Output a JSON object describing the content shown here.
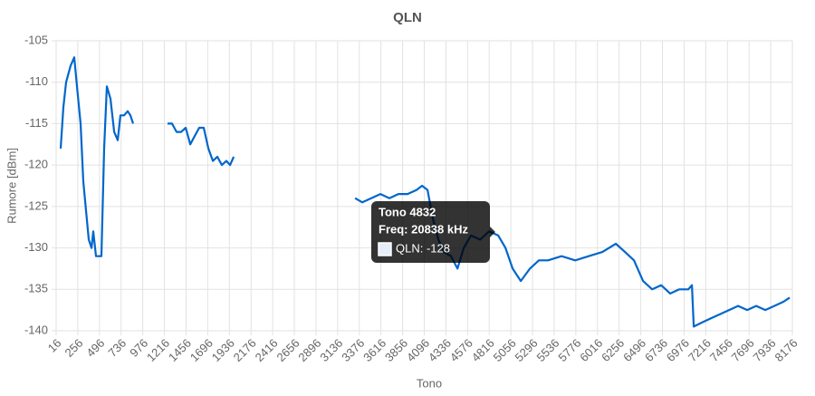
{
  "chart_data": {
    "type": "line",
    "title": "QLN",
    "x_label": "Tono",
    "y_label": "Rumore [dBm]",
    "xlim": [
      16,
      8176
    ],
    "ylim": [
      -140,
      -105
    ],
    "xticks": [
      16,
      256,
      496,
      736,
      976,
      1216,
      1456,
      1696,
      1936,
      2176,
      2416,
      2656,
      2896,
      3136,
      3376,
      3616,
      3856,
      4096,
      4336,
      4576,
      4816,
      5056,
      5296,
      5536,
      5776,
      6016,
      6256,
      6496,
      6736,
      6976,
      7216,
      7456,
      7696,
      7936,
      8176
    ],
    "yticks": [
      -140,
      -135,
      -130,
      -125,
      -120,
      -115,
      -110,
      -105
    ],
    "grid": true,
    "x": [
      66,
      96,
      126,
      177,
      217,
      247,
      287,
      317,
      347,
      377,
      408,
      428,
      458,
      518,
      548,
      578,
      618,
      659,
      699,
      729,
      769,
      809,
      839,
      869,
      null,
      1251,
      1301,
      1351,
      1401,
      1452,
      1502,
      1552,
      1602,
      1652,
      1703,
      1753,
      1803,
      1853,
      1903,
      1944,
      1984,
      null,
      3329,
      3409,
      3509,
      3610,
      3710,
      3810,
      3911,
      4011,
      4072,
      4132,
      4192,
      4253,
      4313,
      4393,
      4464,
      4534,
      4614,
      4715,
      4815,
      4916,
      4996,
      5076,
      5166,
      5267,
      5367,
      5468,
      5618,
      5769,
      5919,
      6070,
      6220,
      6321,
      6421,
      6521,
      6622,
      6722,
      6822,
      6923,
      7023,
      7063,
      7083,
      7174,
      7274,
      7374,
      7475,
      7575,
      7675,
      7776,
      7876,
      7976,
      8077,
      8147
    ],
    "series": [
      {
        "name": "QLN",
        "color": "#0066cc",
        "values": [
          -118,
          -113,
          -110,
          -108,
          -107,
          -110.5,
          -115,
          -122,
          -125.5,
          -129,
          -130,
          -128,
          -131,
          -131,
          -118,
          -110.5,
          -112,
          -116,
          -117,
          -114,
          -114,
          -113.5,
          -114,
          -115,
          null,
          -115,
          -115,
          -116,
          -116,
          -115.5,
          -117.5,
          -116.5,
          -115.5,
          -115.5,
          -118,
          -119.5,
          -119,
          -120,
          -119.5,
          -120,
          -119,
          null,
          -124,
          -124.5,
          -124,
          -123.5,
          -124,
          -123.5,
          -123.5,
          -123,
          -122.5,
          -123,
          -126.5,
          -129,
          -130.5,
          -131,
          -132.5,
          -130,
          -128.5,
          -129,
          -128,
          -128.5,
          -130,
          -132.5,
          -134,
          -132.5,
          -131.5,
          -131.5,
          -131,
          -131.5,
          -131,
          -130.5,
          -129.5,
          -130.5,
          -131.5,
          -134,
          -135,
          -134.5,
          -135.5,
          -135,
          -135,
          -134.5,
          -139.5,
          -139,
          -138.5,
          -138,
          -137.5,
          -137,
          -137.5,
          -137,
          -137.5,
          -137,
          -136.5,
          -136
        ]
      }
    ],
    "tooltip": {
      "title": "Tono 4832",
      "line": "Freq: 20838 kHz",
      "label": "QLN: -128"
    }
  }
}
